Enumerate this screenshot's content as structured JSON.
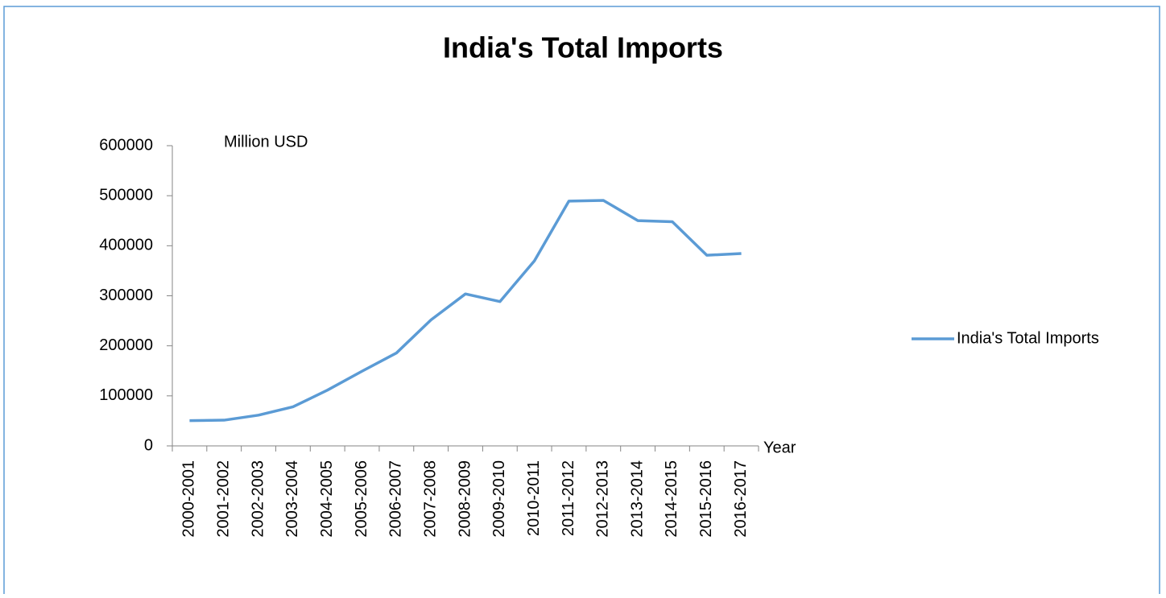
{
  "chart_data": {
    "type": "line",
    "title": "India's Total Imports",
    "y_label": "Million USD",
    "x_label": "Year",
    "categories": [
      "2000-2001",
      "2001-2002",
      "2002-2003",
      "2003-2004",
      "2004-2005",
      "2005-2006",
      "2006-2007",
      "2007-2008",
      "2008-2009",
      "2009-2010",
      "2010-2011",
      "2011-2012",
      "2012-2013",
      "2013-2014",
      "2014-2015",
      "2015-2016",
      "2016-2017"
    ],
    "series": [
      {
        "name": "India's Total Imports",
        "color": "#5b9bd5",
        "values": [
          50500,
          51400,
          61400,
          78100,
          111500,
          149200,
          185700,
          251700,
          303700,
          288400,
          369800,
          489300,
          490700,
          450200,
          448000,
          381000,
          384400
        ]
      }
    ],
    "ylim": [
      0,
      600000
    ],
    "yticks": [
      0,
      100000,
      200000,
      300000,
      400000,
      500000,
      600000
    ],
    "legend": "right"
  }
}
